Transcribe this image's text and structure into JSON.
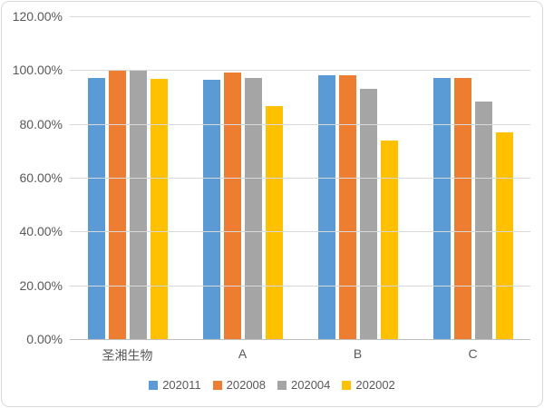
{
  "chart_data": {
    "type": "bar",
    "title": "",
    "xlabel": "",
    "ylabel": "",
    "categories": [
      "圣湘生物",
      "A",
      "B",
      "C"
    ],
    "series": [
      {
        "name": "202011",
        "color": "#5B9BD5",
        "values": [
          97.2,
          96.5,
          98.0,
          97.0
        ]
      },
      {
        "name": "202008",
        "color": "#ED7D31",
        "values": [
          100.0,
          99.0,
          98.0,
          97.0
        ]
      },
      {
        "name": "202004",
        "color": "#A5A5A5",
        "values": [
          100.0,
          97.2,
          93.0,
          88.3
        ]
      },
      {
        "name": "202002",
        "color": "#FFC000",
        "values": [
          96.8,
          86.5,
          74.0,
          77.0
        ]
      }
    ],
    "yticks": [
      {
        "label": "0.00%",
        "value": 0
      },
      {
        "label": "20.00%",
        "value": 20
      },
      {
        "label": "40.00%",
        "value": 40
      },
      {
        "label": "60.00%",
        "value": 60
      },
      {
        "label": "80.00%",
        "value": 80
      },
      {
        "label": "100.00%",
        "value": 100
      },
      {
        "label": "120.00%",
        "value": 120
      }
    ],
    "ylim": [
      0,
      120
    ],
    "grid": true,
    "legend_position": "bottom"
  },
  "colors": {
    "grid": "#D9D9D9",
    "axis_line": "#BFBFBF",
    "text": "#595959",
    "frame_border": "#D9D9D9",
    "background": "#FFFFFF"
  }
}
